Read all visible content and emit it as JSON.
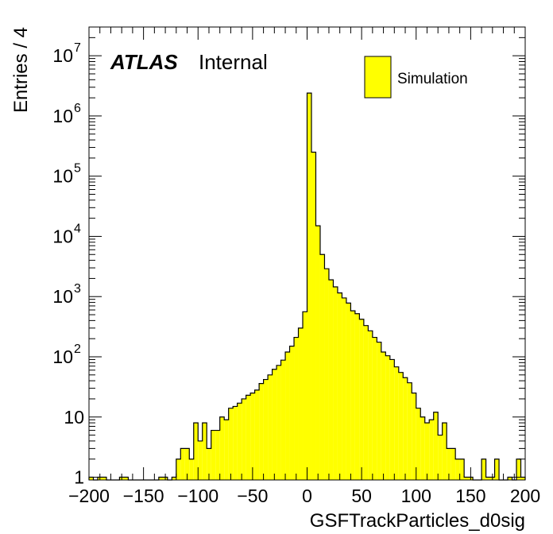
{
  "chart_data": {
    "type": "histogram",
    "xlabel": "GSFTrackParticles_d0sig",
    "ylabel": "Entries / 4",
    "xlim": [
      -200,
      200
    ],
    "ylim": [
      0.9,
      30000000
    ],
    "yscale": "log",
    "bin_width": 4,
    "x_ticks": [
      -200,
      -150,
      -100,
      -50,
      0,
      50,
      100,
      150,
      200
    ],
    "x_tick_labels": [
      "−200",
      "−150",
      "−100",
      "−50",
      "0",
      "50",
      "100",
      "150",
      "200"
    ],
    "y_ticks": [
      1,
      10,
      100,
      1000,
      10000,
      100000,
      1000000,
      10000000
    ],
    "y_tick_labels": [
      {
        "base": "1",
        "exp": ""
      },
      {
        "base": "10",
        "exp": ""
      },
      {
        "base": "10",
        "exp": "2"
      },
      {
        "base": "10",
        "exp": "3"
      },
      {
        "base": "10",
        "exp": "4"
      },
      {
        "base": "10",
        "exp": "5"
      },
      {
        "base": "10",
        "exp": "6"
      },
      {
        "base": "10",
        "exp": "7"
      }
    ],
    "bar_color": "#ffff00",
    "edge_color": "#000000",
    "legend": {
      "position": "top-right",
      "entries": [
        "Simulation"
      ]
    },
    "annotation": {
      "bold": "ATLAS",
      "normal": "Internal"
    },
    "series": [
      {
        "name": "Simulation",
        "bin_low_edges": [
          -200,
          -196,
          -192,
          -188,
          -184,
          -180,
          -176,
          -172,
          -168,
          -164,
          -160,
          -156,
          -152,
          -148,
          -144,
          -140,
          -136,
          -132,
          -128,
          -124,
          -120,
          -116,
          -112,
          -108,
          -104,
          -100,
          -96,
          -92,
          -88,
          -84,
          -80,
          -76,
          -72,
          -68,
          -64,
          -60,
          -56,
          -52,
          -48,
          -44,
          -40,
          -36,
          -32,
          -28,
          -24,
          -20,
          -16,
          -12,
          -8,
          -4,
          0,
          4,
          8,
          12,
          16,
          20,
          24,
          28,
          32,
          36,
          40,
          44,
          48,
          52,
          56,
          60,
          64,
          68,
          72,
          76,
          80,
          84,
          88,
          92,
          96,
          100,
          104,
          108,
          112,
          116,
          120,
          124,
          128,
          132,
          136,
          140,
          144,
          148,
          152,
          156,
          160,
          164,
          168,
          172,
          176,
          180,
          184,
          188,
          192,
          196
        ],
        "values": [
          1,
          0,
          1,
          1,
          0,
          0,
          0,
          1,
          1,
          0,
          0,
          0,
          0,
          0,
          0,
          0,
          1,
          1,
          0,
          1,
          2,
          3,
          3,
          2,
          8,
          4,
          8,
          3,
          6,
          6,
          10,
          9,
          14,
          15,
          17,
          20,
          23,
          25,
          28,
          36,
          42,
          50,
          62,
          72,
          88,
          120,
          150,
          210,
          300,
          560,
          2400000,
          250000,
          15000,
          5000,
          2900,
          1900,
          1450,
          1150,
          950,
          780,
          580,
          520,
          420,
          330,
          270,
          210,
          175,
          120,
          104,
          90,
          68,
          55,
          45,
          37,
          25,
          14,
          10,
          8,
          9,
          12,
          5,
          8,
          3,
          3,
          2,
          2,
          1,
          1,
          0,
          0,
          2,
          1,
          1,
          2,
          0,
          0,
          1,
          0,
          2,
          1
        ]
      }
    ]
  }
}
